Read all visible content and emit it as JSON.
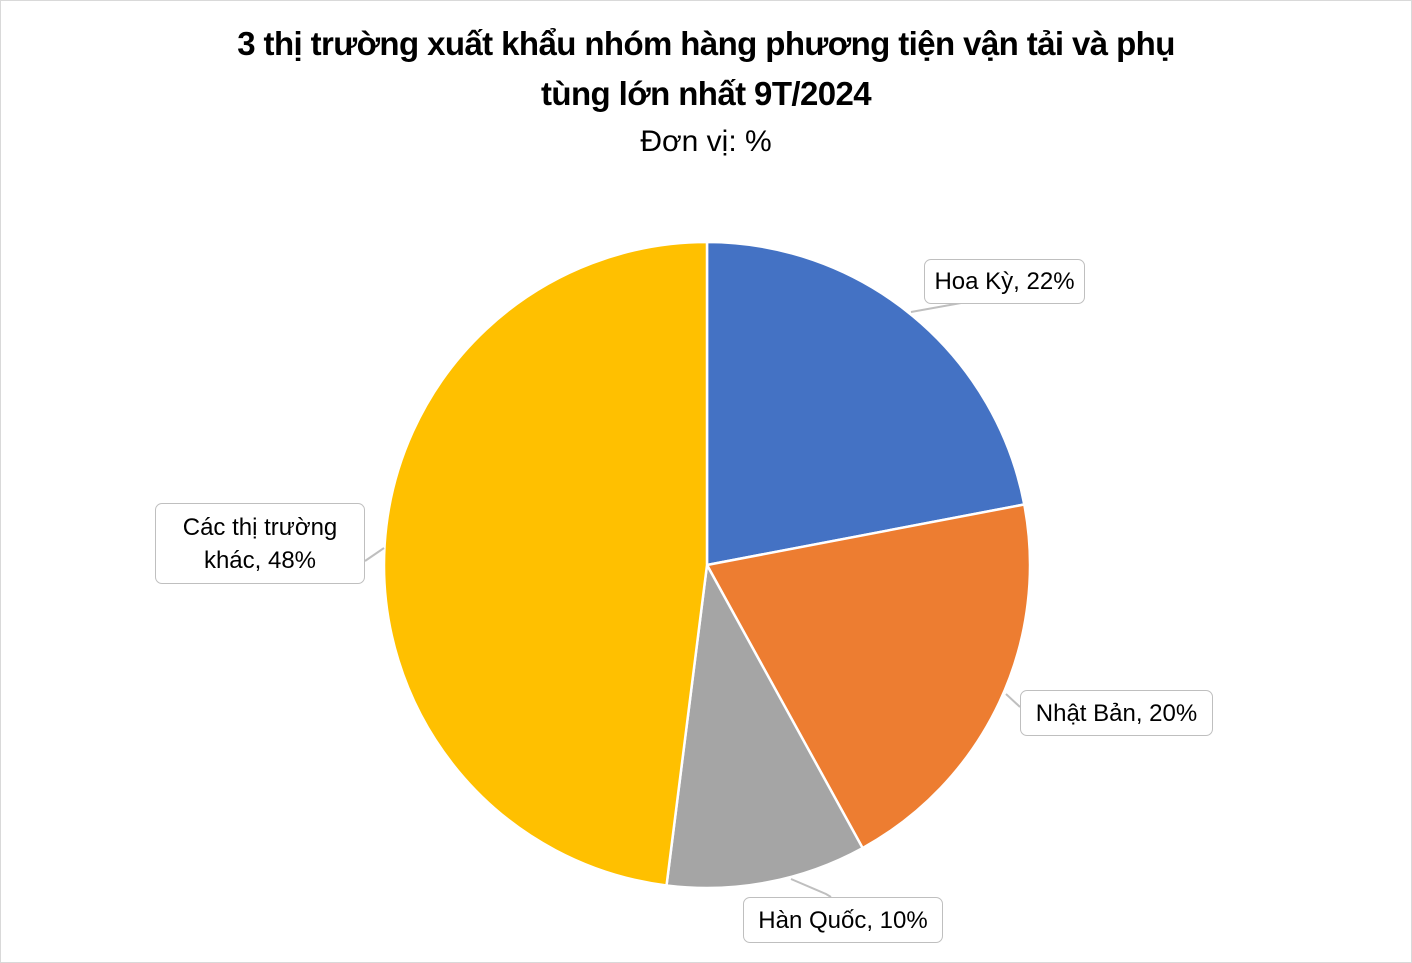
{
  "chart_data": {
    "type": "pie",
    "title_line1": "3 thị trường xuất khẩu nhóm hàng phương tiện vận tải và phụ",
    "title_line2": "tùng lớn nhất 9T/2024",
    "subtitle": "Đơn vị: %",
    "slices": [
      {
        "name": "Hoa Kỳ",
        "value": 22,
        "label": "Hoa Kỳ, 22%",
        "color": "#4472C4"
      },
      {
        "name": "Nhật Bản",
        "value": 20,
        "label": "Nhật Bản, 20%",
        "color": "#ED7D31"
      },
      {
        "name": "Hàn Quốc",
        "value": 10,
        "label": "Hàn Quốc, 10%",
        "color": "#A5A5A5"
      },
      {
        "name": "Các thị trường khác",
        "value": 48,
        "label_line1": "Các thị trường",
        "label_line2": "khác, 48%",
        "color": "#FFC000"
      }
    ],
    "start_angle": "top, clockwise",
    "legend": "none"
  }
}
